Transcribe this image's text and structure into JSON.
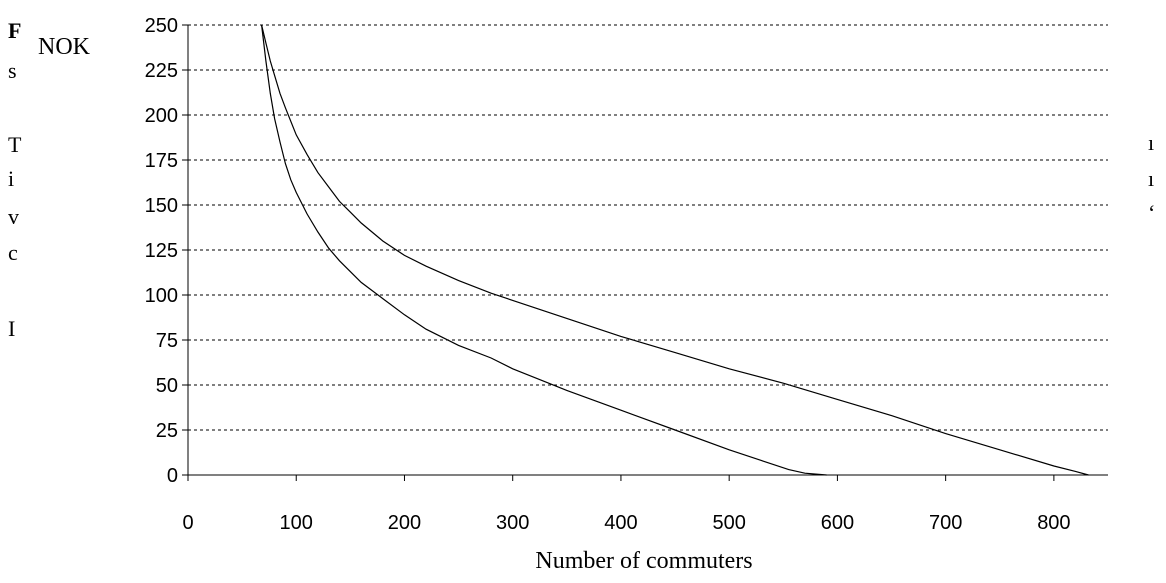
{
  "background_text": [
    {
      "text": "F",
      "bold": true
    },
    {
      "text": "s"
    },
    {
      "text": "T"
    },
    {
      "text": "i"
    },
    {
      "text": "v"
    },
    {
      "text": "c"
    },
    {
      "text": "I"
    },
    {
      "text": "ı"
    },
    {
      "text": "ı"
    },
    {
      "text": "‘"
    }
  ],
  "chart_data": {
    "type": "line",
    "title": "",
    "ylabel": "NOK",
    "xlabel": "Number of commuters",
    "xlim": [
      0,
      850
    ],
    "ylim": [
      0,
      250
    ],
    "xticks": [
      0,
      100,
      200,
      300,
      400,
      500,
      600,
      700,
      800
    ],
    "yticks": [
      0,
      25,
      50,
      75,
      100,
      125,
      150,
      175,
      200,
      225,
      250
    ],
    "grid": "horizontal-dotted",
    "series": [
      {
        "x": [
          68,
          72,
          76,
          80,
          85,
          90,
          95,
          100,
          110,
          120,
          130,
          140,
          160,
          180,
          200,
          220,
          250,
          280,
          300,
          350,
          400,
          450,
          500,
          530,
          555,
          570,
          580,
          590
        ],
        "y": [
          250,
          230,
          212,
          198,
          185,
          173,
          164,
          157,
          145,
          135,
          126,
          119,
          107,
          98,
          89,
          81,
          72,
          65,
          59,
          47,
          36,
          25,
          14,
          8,
          3,
          1,
          0.5,
          0
        ],
        "color": "#000000"
      },
      {
        "x": [
          68,
          72,
          76,
          80,
          85,
          90,
          100,
          110,
          120,
          130,
          140,
          150,
          160,
          180,
          200,
          220,
          250,
          280,
          300,
          350,
          400,
          450,
          500,
          550,
          600,
          650,
          700,
          750,
          800,
          820,
          832
        ],
        "y": [
          250,
          240,
          230,
          222,
          212,
          204,
          189,
          178,
          168,
          160,
          152,
          146,
          140,
          130,
          122,
          116,
          108,
          101,
          97,
          87,
          77,
          68,
          59,
          51,
          42,
          33,
          23,
          14,
          5,
          2,
          0
        ],
        "color": "#000000"
      }
    ]
  }
}
